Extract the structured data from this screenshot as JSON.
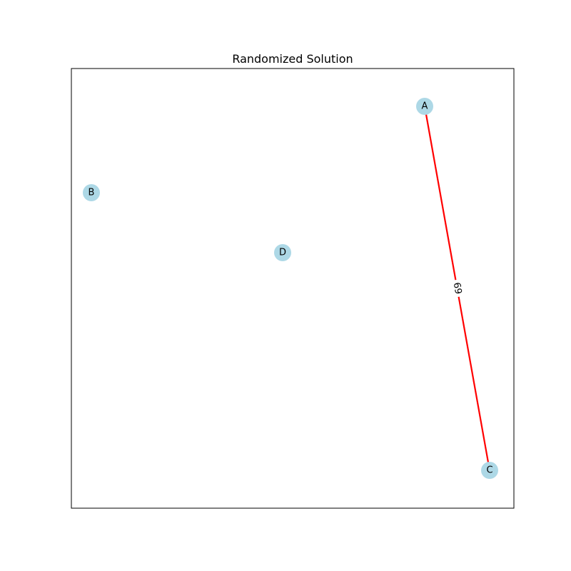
{
  "title": "Randomized Solution",
  "style": {
    "node_color": "#add8e6",
    "edge_color": "#ff0000",
    "frame_color": "#000000",
    "background": "#ffffff"
  },
  "nodes": [
    {
      "id": "A",
      "label": "A"
    },
    {
      "id": "B",
      "label": "B"
    },
    {
      "id": "C",
      "label": "C"
    },
    {
      "id": "D",
      "label": "D"
    }
  ],
  "edges": [
    {
      "source": "A",
      "target": "C",
      "label": "69"
    }
  ]
}
